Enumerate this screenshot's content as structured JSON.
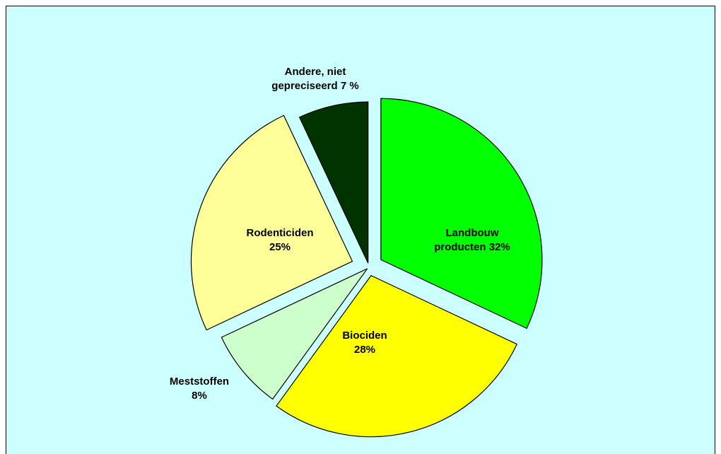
{
  "chart_data": {
    "type": "pie",
    "categories": [
      "Landbouw producten",
      "Biociden",
      "Meststoffen",
      "Rodenticiden",
      "Andere, niet gepreciseerd"
    ],
    "values": [
      32,
      28,
      8,
      25,
      7
    ],
    "value_labels": [
      "32%",
      "28%",
      "8%",
      "25%",
      "7 %"
    ],
    "colors": [
      "#00ff00",
      "#ffff00",
      "#ccffcc",
      "#ffff99",
      "#003300"
    ]
  }
}
